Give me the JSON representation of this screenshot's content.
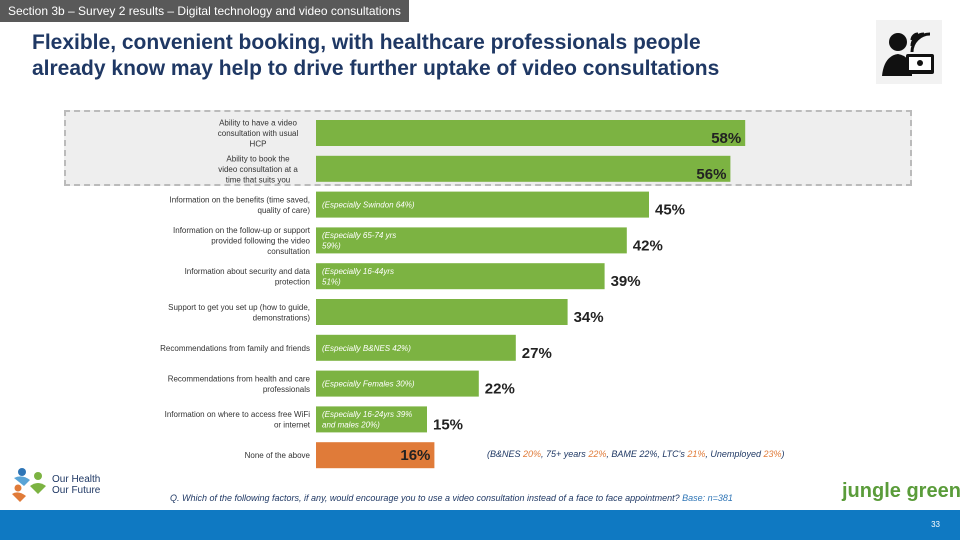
{
  "header": {
    "section_tab": "Section 3b – Survey 2 results – Digital technology and video consultations",
    "headline_line1": "Flexible, convenient booking, with healthcare professionals people",
    "headline_line2": "already know may help to drive further uptake of video consultations"
  },
  "chart_data": {
    "type": "bar",
    "orientation": "horizontal",
    "categories": [
      "Ability to have a video consultation with usual HCP",
      "Ability to book the video consultation at a time that suits you",
      "Information on the benefits (time saved, quality of care)",
      "Information on the follow-up or support provided following the video consultation",
      "Information about security and data protection",
      "Support to get you set up (how to guide, demonstrations)",
      "Recommendations from family and friends",
      "Recommendations from health and care professionals",
      "Information on where to access free WiFi or internet",
      "None of the above"
    ],
    "values": [
      58,
      56,
      45,
      42,
      39,
      34,
      27,
      22,
      15,
      16
    ],
    "value_labels": [
      "58%",
      "56%",
      "45%",
      "42%",
      "39%",
      "34%",
      "27%",
      "22%",
      "15%",
      "16%"
    ],
    "notes": [
      "",
      "",
      "(Especially Swindon 64%)",
      "(Especially 65-74 yrs 59%)",
      "(Especially 16-44yrs 51%)",
      "",
      "(Especially B&NES 42%)",
      "(Especially Females 30%)",
      "(Especially 16-24yrs 39% and males 20%)",
      ""
    ],
    "highlighted": [
      0,
      1
    ],
    "colors": {
      "bar": "#7cb342",
      "none_bar": "#e07b39"
    },
    "xlim": [
      0,
      60
    ]
  },
  "none_note": {
    "prefix": "(B&NES ",
    "v1": "20%",
    "t2": ", 75+ years ",
    "v2": "22%",
    "t3": ", BAME 22%, LTC's ",
    "v3": "21%",
    "t4": ", Unemployed ",
    "v4": "23%",
    "suffix": ")"
  },
  "question": {
    "text": "Q. Which of the following factors, if any, would encourage you to use a video consultation instead of a face to face appointment? ",
    "base": "Base: n=381"
  },
  "logos": {
    "left_line1": "Our Health",
    "left_line2": "Our Future",
    "right": "jungle green"
  },
  "footer": {
    "page_number": "33"
  }
}
